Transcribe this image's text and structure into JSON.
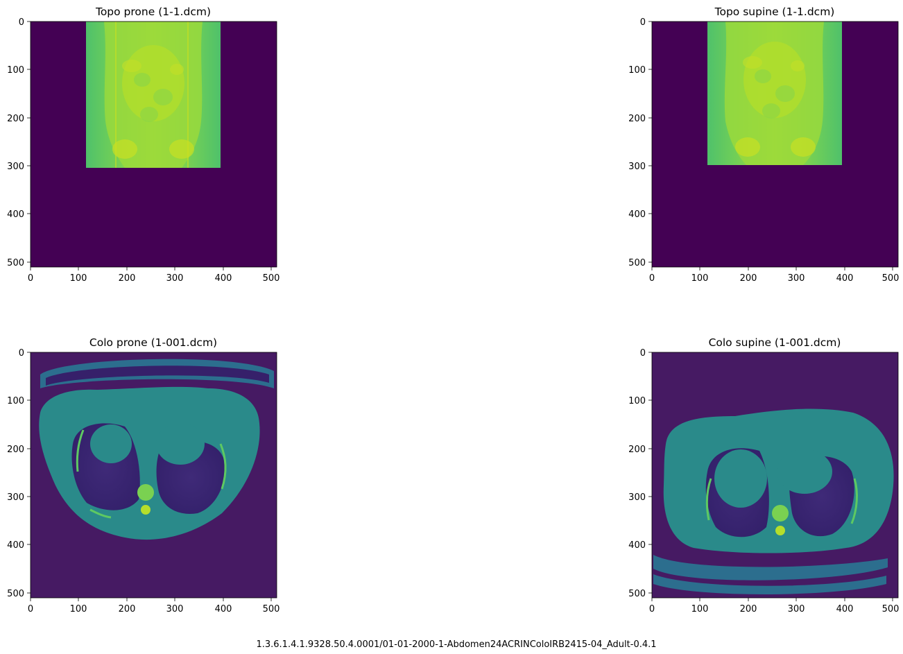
{
  "caption": "1.3.6.1.4.1.9328.50.4.0001/01-01-2000-1-Abdomen24ACRINColoIRB2415-04_Adult-0.4.1",
  "chart_data": [
    {
      "type": "heatmap",
      "title": "Topo prone (1-1.dcm)",
      "colormap": "viridis",
      "xlim": [
        0,
        511
      ],
      "ylim": [
        511,
        0
      ],
      "x_ticks": [
        "0",
        "100",
        "200",
        "300",
        "400",
        "500"
      ],
      "y_ticks": [
        "0",
        "100",
        "200",
        "300",
        "400",
        "500"
      ],
      "image_content": "topogram-prone",
      "content_extent": {
        "x": [
          115,
          395
        ],
        "y": [
          0,
          305
        ]
      },
      "colors": {
        "background": "#440154",
        "soft_tissue": "#5ec962",
        "dense": "#b5de2b"
      }
    },
    {
      "type": "heatmap",
      "title": "Topo supine (1-1.dcm)",
      "colormap": "viridis",
      "xlim": [
        0,
        511
      ],
      "ylim": [
        511,
        0
      ],
      "x_ticks": [
        "0",
        "100",
        "200",
        "300",
        "400",
        "500"
      ],
      "y_ticks": [
        "0",
        "100",
        "200",
        "300",
        "400",
        "500"
      ],
      "image_content": "topogram-supine",
      "content_extent": {
        "x": [
          115,
          395
        ],
        "y": [
          0,
          298
        ]
      },
      "colors": {
        "background": "#440154",
        "soft_tissue": "#5ec962",
        "dense": "#b5de2b"
      }
    },
    {
      "type": "heatmap",
      "title": "Colo prone (1-001.dcm)",
      "colormap": "viridis",
      "xlim": [
        0,
        511
      ],
      "ylim": [
        511,
        0
      ],
      "x_ticks": [
        "0",
        "100",
        "200",
        "300",
        "400",
        "500"
      ],
      "y_ticks": [
        "0",
        "100",
        "200",
        "300",
        "400",
        "500"
      ],
      "image_content": "axial-ct-chest-prone",
      "colors": {
        "background": "#440154",
        "lung": "#3b2a72",
        "soft_tissue": "#2a8a8a",
        "bone": "#7ad151"
      }
    },
    {
      "type": "heatmap",
      "title": "Colo supine (1-001.dcm)",
      "colormap": "viridis",
      "xlim": [
        0,
        511
      ],
      "ylim": [
        511,
        0
      ],
      "x_ticks": [
        "0",
        "100",
        "200",
        "300",
        "400",
        "500"
      ],
      "y_ticks": [
        "0",
        "100",
        "200",
        "300",
        "400",
        "500"
      ],
      "image_content": "axial-ct-chest-supine",
      "colors": {
        "background": "#440154",
        "lung": "#3b2a72",
        "soft_tissue": "#2a8a8a",
        "bone": "#7ad151"
      }
    }
  ]
}
